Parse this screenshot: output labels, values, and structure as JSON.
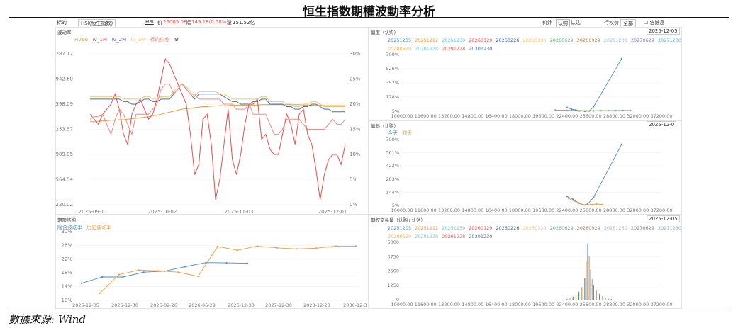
{
  "title": "恒生指数期權波動率分析",
  "source": "數據來源: Wind",
  "toolbar": {
    "underlying_label": "标的",
    "underlying_value": "HSI(恒生指数)",
    "code": "HSI",
    "price_label": "价",
    "price": "26085.08",
    "change_label": "幅",
    "change": "149.18(0.58%)",
    "amount_label": "量",
    "amount": "151.52亿",
    "right_tabs": [
      "价外",
      "认购",
      "认沽"
    ],
    "strike_label": "行权价",
    "strike_value": "全部",
    "expired_label": "含除息"
  },
  "colors": {
    "up": "#e8504b",
    "blue": "#4a8bc2",
    "orange": "#f39a3c"
  },
  "panels": {
    "vol": {
      "title": "波动率",
      "settings_icon": "gear-icon"
    },
    "skew": {
      "title": "偏度（认购）",
      "date": "2025-12-05"
    },
    "smile": {
      "title": "偏斜（认购）",
      "date": "2025-12-0"
    },
    "term": {
      "title": "期限结构"
    },
    "oi": {
      "title": "期权交易量（认购+认沽）",
      "date": "2025-12-05"
    }
  },
  "expiry_legend": {
    "row1": [
      {
        "label": "20251205",
        "color": "#4a8bc2"
      },
      {
        "label": "20251212",
        "color": "#f39a3c"
      },
      {
        "label": "20251230",
        "color": "#6ac6d8"
      },
      {
        "label": "20260129",
        "color": "#e8504b"
      },
      {
        "label": "20260226",
        "color": "#3b5fa8"
      },
      {
        "label": "20260330",
        "color": "#f5c26b"
      },
      {
        "label": "20260629",
        "color": "#56b67a"
      },
      {
        "label": "20260929",
        "color": "#b07d45"
      },
      {
        "label": "20261230",
        "color": "#9ab7d3"
      },
      {
        "label": "20270629",
        "color": "#8e6fc2"
      },
      {
        "label": "20271230",
        "color": "#5bb6e0"
      }
    ],
    "row2": [
      {
        "label": "20280629",
        "color": "#f5b16b"
      },
      {
        "label": "20281228",
        "color": "#7fc9d6"
      },
      {
        "label": "20291228",
        "color": "#e8645e"
      },
      {
        "label": "20301230",
        "color": "#4f6fb0"
      }
    ]
  },
  "chart_data": [
    {
      "id": "vol",
      "type": "line",
      "x_ticks": [
        "2025-09-11",
        "2025-10-02",
        "2025-11-03",
        "2025-12-01"
      ],
      "y_left_ticks": [
        "7287.12",
        "6942.60",
        "6598.09",
        "6253.57",
        "5909.05",
        "5564.54",
        "5220.02"
      ],
      "y_right_ticks": [
        "30%",
        "25%",
        "20%",
        "15%",
        "10%",
        "5%",
        "0%"
      ],
      "ylim_right": [
        0,
        30
      ],
      "series": [
        {
          "name": "HV60",
          "color": "#f39a3c",
          "values": [
            16.5,
            16.5,
            16.6,
            16.7,
            16.7,
            16.8,
            16.8,
            16.9,
            16.9,
            17.0,
            17.1,
            17.2,
            17.3,
            17.4,
            17.5,
            17.7,
            17.8,
            18.0,
            18.2,
            18.4,
            18.6,
            18.8,
            19.0,
            19.1,
            19.2,
            19.3,
            19.4,
            19.5,
            19.5,
            19.6,
            19.6,
            19.7,
            19.7,
            19.7,
            19.8,
            19.8,
            19.8,
            19.8,
            19.8,
            19.8,
            19.8,
            19.9,
            19.9,
            19.9,
            19.9,
            19.9,
            19.9,
            19.9,
            19.9,
            19.9,
            19.9,
            19.8,
            19.8,
            19.8,
            19.8,
            19.8,
            19.7,
            19.7,
            19.7,
            19.7,
            19.7,
            19.7
          ]
        },
        {
          "name": "IV_1M",
          "color": "#e8504b",
          "values": [
            18,
            17,
            16,
            18,
            19,
            20,
            22,
            19,
            14,
            12,
            18,
            20,
            21,
            19,
            17,
            18,
            21,
            25,
            29,
            28,
            26,
            24,
            22,
            20,
            14,
            6,
            8,
            17,
            18,
            12,
            1,
            5,
            12,
            19,
            9,
            6,
            10,
            16,
            20,
            20,
            21,
            13,
            14,
            11,
            10,
            10,
            14,
            18,
            16,
            12,
            18,
            19,
            14,
            12,
            7,
            1,
            6,
            9,
            10,
            10,
            8,
            12
          ]
        },
        {
          "name": "IV_2M",
          "color": "#4a6fb5",
          "values": [
            21,
            21,
            21,
            21,
            21,
            21,
            21,
            21,
            20.5,
            20.5,
            20,
            20,
            20.5,
            21,
            21,
            20.5,
            20.5,
            21,
            21,
            21,
            22,
            23,
            24,
            23,
            22,
            21,
            22,
            22,
            22,
            22,
            22,
            22,
            21.5,
            21,
            20.5,
            20.5,
            20,
            20,
            20,
            20.5,
            20.5,
            21,
            21,
            20,
            20,
            20,
            20,
            19.5,
            19.5,
            19,
            19,
            19.5,
            19.5,
            20,
            20,
            19.5,
            19,
            19,
            18.5,
            18.5,
            18.5,
            18.5
          ]
        },
        {
          "name": "IV_3M",
          "color": "#f5c26b",
          "values": [
            21.5,
            21.5,
            21.5,
            21.5,
            21.5,
            21.5,
            21.5,
            21.5,
            21,
            21,
            21,
            21,
            21,
            21.5,
            21.5,
            21,
            21,
            21.5,
            21.5,
            21.5,
            22.5,
            23.5,
            24,
            23.5,
            22.5,
            21.5,
            22.5,
            22.5,
            22.5,
            22.5,
            22.5,
            22,
            22,
            21.5,
            21,
            21,
            21,
            21,
            21,
            21,
            21,
            21.5,
            21.5,
            20.5,
            20.5,
            20.5,
            20.5,
            20,
            20,
            19.5,
            19.5,
            20,
            20,
            20.5,
            20.5,
            20,
            19.5,
            19.5,
            19.5,
            19.5,
            19.5,
            19.5
          ]
        },
        {
          "name": "标的价格",
          "color": "#ef8a86",
          "values": [
            17,
            17.5,
            17.5,
            18,
            16,
            14,
            17,
            19,
            18,
            16,
            14,
            18,
            18,
            18,
            18,
            19,
            20,
            23,
            24,
            24,
            22,
            23,
            24,
            23,
            22,
            22,
            21,
            21,
            21,
            21,
            21,
            21,
            20,
            20,
            20,
            19,
            19,
            19,
            20,
            18,
            18,
            18,
            18,
            16,
            14,
            14,
            15,
            17,
            17,
            17,
            17,
            16,
            15,
            15,
            15,
            15,
            15,
            16,
            17,
            16,
            16,
            17
          ]
        }
      ]
    },
    {
      "id": "skew",
      "type": "line",
      "x_ticks": [
        "10000.00",
        "11600.00",
        "13200.00",
        "14800.00",
        "16400.00",
        "18000.00",
        "19600.00",
        "22400.00",
        "25600.00",
        "28800.00",
        "32000.00",
        "37200.00"
      ],
      "y_ticks": [
        "700%",
        "526%",
        "352%",
        "178%",
        "5%"
      ],
      "ylim": [
        5,
        700
      ],
      "series": [
        {
          "name": "20251205",
          "color": "#4a8bc2",
          "points": [
            [
              22400,
              50
            ],
            [
              23000,
              30
            ],
            [
              23600,
              20
            ],
            [
              24200,
              10
            ],
            [
              24800,
              5
            ],
            [
              25400,
              8
            ],
            [
              26000,
              60
            ],
            [
              29800,
              650
            ]
          ]
        },
        {
          "name": "20260129",
          "color": "#e8504b",
          "points": [
            [
              22400,
              15
            ],
            [
              24000,
              10
            ],
            [
              26000,
              10
            ],
            [
              28000,
              12
            ],
            [
              30000,
              14
            ]
          ]
        },
        {
          "name": "20260629",
          "color": "#56b67a",
          "points": [
            [
              21000,
              20
            ],
            [
              23000,
              15
            ],
            [
              25000,
              12
            ],
            [
              27000,
              12
            ],
            [
              29000,
              14
            ],
            [
              31000,
              15
            ]
          ]
        }
      ]
    },
    {
      "id": "smile",
      "type": "line",
      "x_ticks": [
        "10000.00",
        "11600.00",
        "13200.00",
        "14800.00",
        "16400.00",
        "18000.00",
        "19600.00",
        "22400.00",
        "25600.00",
        "28800.00",
        "32000.00",
        "37200.00"
      ],
      "y_ticks": [
        "700%",
        "561%",
        "422%",
        "283%",
        "144%",
        "5%"
      ],
      "ylim": [
        5,
        700
      ],
      "series": [
        {
          "name": "今天",
          "color": "#4a8bc2",
          "points": [
            [
              22400,
              100
            ],
            [
              23200,
              70
            ],
            [
              24000,
              30
            ],
            [
              24600,
              10
            ],
            [
              25200,
              20
            ],
            [
              26000,
              90
            ],
            [
              29800,
              650
            ]
          ]
        },
        {
          "name": "昨天",
          "color": "#f39a3c",
          "points": [
            [
              22600,
              80
            ],
            [
              23400,
              50
            ],
            [
              24200,
              25
            ],
            [
              24800,
              10
            ],
            [
              25600,
              15
            ],
            [
              26400,
              20
            ],
            [
              27200,
              15
            ]
          ]
        }
      ]
    },
    {
      "id": "term",
      "type": "line",
      "x_ticks": [
        "2025-12-05",
        "2025-12-30",
        "2026-02-26",
        "2026-06-29",
        "2026-12-30",
        "2027-12-30",
        "2028-12-28",
        "2030-12-3"
      ],
      "y_ticks": [
        "30%",
        "26%",
        "22%",
        "18%",
        "14%",
        "10%"
      ],
      "ylim": [
        10,
        30
      ],
      "series": [
        {
          "name": "隐含波动率",
          "color": "#4a8bc2",
          "values": [
            15.0,
            16.8,
            16.8,
            18.2,
            18.5,
            19.8,
            21.0,
            20.9,
            20.8
          ]
        },
        {
          "name": "历史波动率",
          "color": "#f39a3c",
          "values": [
            12.0,
            17.5,
            18.8,
            18.6,
            18.2,
            17.0,
            25.7,
            24.6,
            25.8,
            25.3,
            25.0,
            25.2,
            25.8,
            25.8
          ]
        }
      ]
    },
    {
      "id": "oi",
      "type": "bar",
      "x_ticks": [
        "10000.00",
        "11600.00",
        "13200.00",
        "14800.00",
        "16400.00",
        "18000.00",
        "19600.00",
        "22400.00",
        "25600.00",
        "28800.00",
        "32000.00",
        "37200.00"
      ],
      "y_ticks": [
        "5000",
        "3750",
        "2500",
        "1250",
        "0"
      ],
      "ylim": [
        0,
        5000
      ],
      "bars": [
        {
          "x": 22400,
          "v": 60
        },
        {
          "x": 22800,
          "v": 120
        },
        {
          "x": 23200,
          "v": 260
        },
        {
          "x": 23600,
          "v": 420
        },
        {
          "x": 24000,
          "v": 700
        },
        {
          "x": 24400,
          "v": 1100
        },
        {
          "x": 24800,
          "v": 1900
        },
        {
          "x": 25000,
          "v": 3300
        },
        {
          "x": 25200,
          "v": 4900
        },
        {
          "x": 25400,
          "v": 3800
        },
        {
          "x": 25600,
          "v": 2600
        },
        {
          "x": 25800,
          "v": 1800
        },
        {
          "x": 26000,
          "v": 1300
        },
        {
          "x": 26400,
          "v": 800
        },
        {
          "x": 26800,
          "v": 500
        },
        {
          "x": 27200,
          "v": 300
        },
        {
          "x": 27600,
          "v": 180
        },
        {
          "x": 28000,
          "v": 100
        },
        {
          "x": 28400,
          "v": 60
        }
      ]
    }
  ]
}
